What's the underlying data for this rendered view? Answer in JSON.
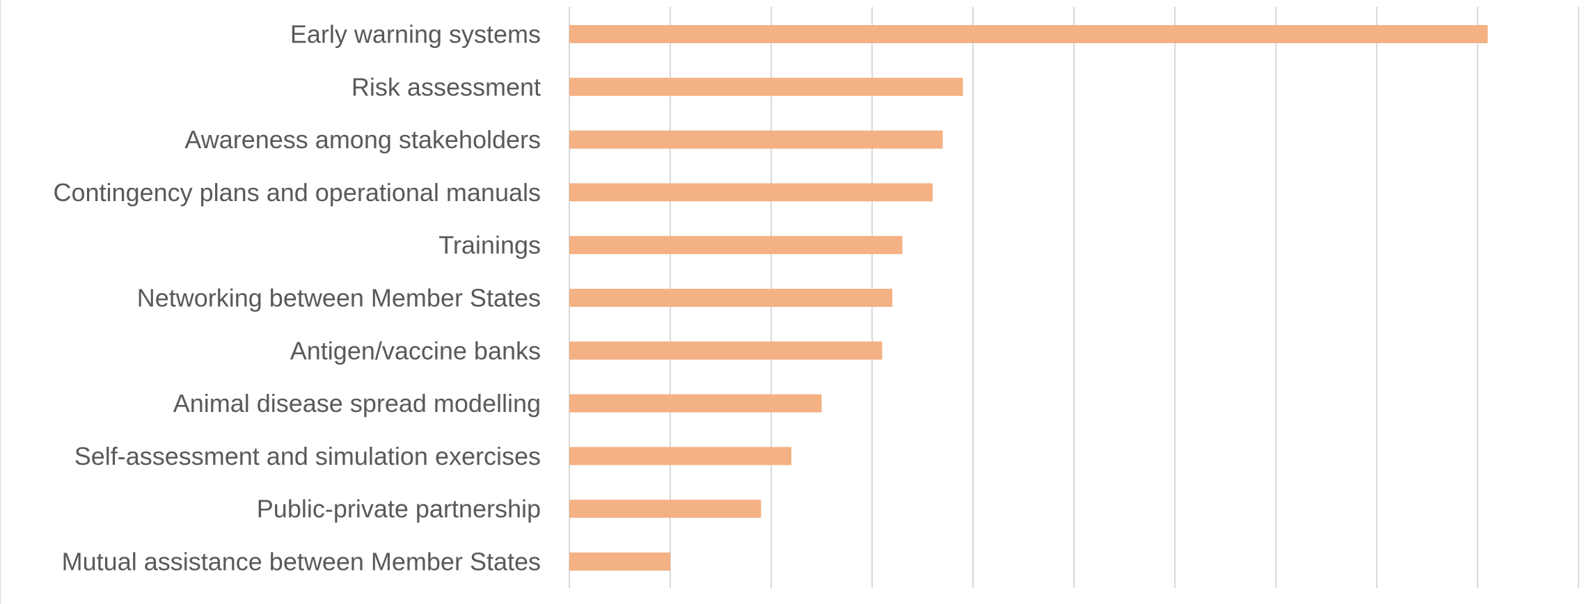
{
  "chart_data": {
    "type": "bar",
    "orientation": "horizontal",
    "title": "",
    "xlabel": "",
    "ylabel": "",
    "categories": [
      "Early warning systems",
      "Risk assessment",
      "Awareness among stakeholders",
      "Contingency plans and operational manuals",
      "Trainings",
      "Networking between Member States",
      "Antigen/vaccine banks",
      "Animal disease spread modelling",
      "Self-assessment and simulation exercises",
      "Public-private partnership",
      "Mutual assistance between Member States"
    ],
    "values": [
      91,
      39,
      37,
      36,
      33,
      32,
      31,
      25,
      22,
      19,
      10
    ],
    "xlim": [
      0,
      100
    ],
    "gridlines": true,
    "tick_labels_shown": false,
    "legend": "none",
    "bar_color": "#f4b183",
    "gridline_color": "#d9d9d9",
    "label_color": "#595959"
  }
}
